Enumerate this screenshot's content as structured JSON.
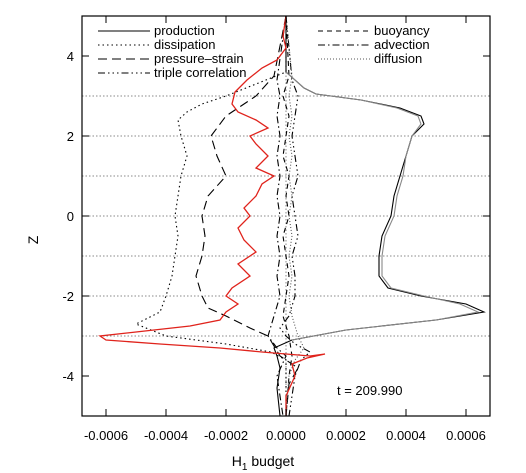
{
  "chart_data": {
    "type": "line",
    "xlabel": "H",
    "xlabel_sub": "1",
    "xlabel_rest": " budget",
    "ylabel": "Z",
    "xlim": [
      -0.00068,
      0.00068
    ],
    "ylim": [
      -5.0,
      5.0
    ],
    "x_ticks": [
      -0.0006,
      -0.0004,
      -0.0002,
      0.0,
      0.0002,
      0.0004,
      0.0006
    ],
    "x_tick_labels": [
      "-0.0006",
      "-0.0004",
      "-0.0002",
      "0.0000",
      "0.0002",
      "0.0004",
      "0.0006"
    ],
    "y_ticks": [
      -4,
      -2,
      0,
      2,
      4
    ],
    "y_tick_labels": [
      "-4",
      "-2",
      "0",
      "2",
      "4"
    ],
    "gridlines_y": [
      -3,
      -2,
      -1,
      0,
      1,
      2,
      3
    ],
    "annotation": "t = 209.990",
    "legend": [
      {
        "label": "production",
        "style": "solid",
        "color": "#000000"
      },
      {
        "label": "dissipation",
        "style": "dotted",
        "color": "#000000"
      },
      {
        "label": "pressure–strain",
        "style": "longdash",
        "color": "#000000"
      },
      {
        "label": "triple correlation",
        "style": "dashdotdotdot",
        "color": "#000000"
      },
      {
        "label": "buoyancy",
        "style": "dashed",
        "color": "#000000"
      },
      {
        "label": "advection",
        "style": "dashdot",
        "color": "#000000"
      },
      {
        "label": "diffusion",
        "style": "finedotted",
        "color": "#555555"
      }
    ],
    "series": [
      {
        "name": "production",
        "style": "solid",
        "color": "#000000",
        "points": [
          [
            0.0,
            5.0
          ],
          [
            0.0,
            3.6
          ],
          [
            3e-05,
            3.4
          ],
          [
            6e-05,
            3.2
          ],
          [
            0.0001,
            3.05
          ],
          [
            0.00025,
            2.9
          ],
          [
            0.00038,
            2.7
          ],
          [
            0.00045,
            2.5
          ],
          [
            0.00046,
            2.3
          ],
          [
            0.00042,
            2.0
          ],
          [
            0.0004,
            1.5
          ],
          [
            0.00038,
            1.0
          ],
          [
            0.00036,
            0.5
          ],
          [
            0.00035,
            0.0
          ],
          [
            0.00032,
            -0.5
          ],
          [
            0.00031,
            -1.0
          ],
          [
            0.00031,
            -1.5
          ],
          [
            0.00034,
            -1.8
          ],
          [
            0.00045,
            -2.0
          ],
          [
            0.0006,
            -2.2
          ],
          [
            0.00066,
            -2.4
          ],
          [
            0.0005,
            -2.6
          ],
          [
            0.0002,
            -2.85
          ],
          [
            2e-05,
            -3.1
          ],
          [
            -4e-05,
            -3.3
          ],
          [
            -3e-05,
            -3.5
          ],
          [
            -2e-05,
            -3.8
          ],
          [
            -3e-05,
            -4.3
          ],
          [
            -2e-05,
            -5.0
          ]
        ]
      },
      {
        "name": "dissipation",
        "style": "dotted",
        "color": "#000000",
        "points": [
          [
            0.0,
            5.0
          ],
          [
            0.0,
            3.6
          ],
          [
            -0.0001,
            3.3
          ],
          [
            -0.0002,
            3.0
          ],
          [
            -0.00028,
            2.8
          ],
          [
            -0.00033,
            2.6
          ],
          [
            -0.00036,
            2.4
          ],
          [
            -0.00035,
            2.0
          ],
          [
            -0.00033,
            1.5
          ],
          [
            -0.00035,
            1.0
          ],
          [
            -0.00036,
            0.5
          ],
          [
            -0.00037,
            0.0
          ],
          [
            -0.00036,
            -0.5
          ],
          [
            -0.00037,
            -1.0
          ],
          [
            -0.00038,
            -1.5
          ],
          [
            -0.0004,
            -2.0
          ],
          [
            -0.00042,
            -2.4
          ],
          [
            -0.0005,
            -2.7
          ],
          [
            -0.0004,
            -3.0
          ],
          [
            -0.0002,
            -3.2
          ],
          [
            -5e-05,
            -3.4
          ],
          [
            0.0,
            -3.6
          ],
          [
            0.0,
            -5.0
          ]
        ]
      },
      {
        "name": "pressure–strain",
        "style": "longdash",
        "color": "#000000",
        "points": [
          [
            0.0,
            5.0
          ],
          [
            -4e-05,
            3.5
          ],
          [
            -0.0001,
            3.0
          ],
          [
            -0.0002,
            2.5
          ],
          [
            -0.00025,
            2.0
          ],
          [
            -0.00023,
            1.5
          ],
          [
            -0.0002,
            1.0
          ],
          [
            -0.00026,
            0.5
          ],
          [
            -0.00028,
            0.0
          ],
          [
            -0.00027,
            -0.5
          ],
          [
            -0.00028,
            -1.0
          ],
          [
            -0.0003,
            -1.5
          ],
          [
            -0.00028,
            -2.0
          ],
          [
            -0.00026,
            -2.3
          ],
          [
            -0.0002,
            -2.5
          ],
          [
            -0.00012,
            -2.8
          ],
          [
            -6e-05,
            -3.0
          ],
          [
            -2e-05,
            -3.5
          ],
          [
            4e-05,
            -3.8
          ],
          [
            1e-05,
            -4.2
          ],
          [
            0.0,
            -5.0
          ]
        ]
      },
      {
        "name": "triple correlation",
        "style": "dashdotdotdot",
        "color": "#000000",
        "points": [
          [
            0.0,
            5.0
          ],
          [
            2e-05,
            3.4
          ],
          [
            4e-05,
            3.0
          ],
          [
            3e-05,
            2.5
          ],
          [
            2e-05,
            2.0
          ],
          [
            3e-05,
            1.5
          ],
          [
            4e-05,
            1.0
          ],
          [
            2e-05,
            0.5
          ],
          [
            3e-05,
            0.0
          ],
          [
            4e-05,
            -0.5
          ],
          [
            2e-05,
            -1.0
          ],
          [
            3e-05,
            -1.5
          ],
          [
            3e-05,
            -2.0
          ],
          [
            1e-05,
            -2.5
          ],
          [
            -2e-05,
            -2.8
          ],
          [
            0.0,
            -3.0
          ],
          [
            3e-05,
            -3.2
          ],
          [
            8e-05,
            -3.4
          ],
          [
            5e-05,
            -3.6
          ],
          [
            3e-05,
            -4.0
          ],
          [
            2e-05,
            -4.5
          ],
          [
            1e-05,
            -5.0
          ]
        ]
      },
      {
        "name": "buoyancy",
        "style": "dashed",
        "color": "#000000",
        "points": [
          [
            0.0,
            5.0
          ],
          [
            1e-05,
            3.5
          ],
          [
            -1e-05,
            3.0
          ],
          [
            1e-05,
            2.5
          ],
          [
            0.0,
            2.0
          ],
          [
            -1e-05,
            1.5
          ],
          [
            1e-05,
            1.0
          ],
          [
            0.0,
            0.5
          ],
          [
            1e-05,
            0.0
          ],
          [
            -1e-05,
            -0.5
          ],
          [
            0.0,
            -1.0
          ],
          [
            1e-05,
            -1.5
          ],
          [
            0.0,
            -2.0
          ],
          [
            -1e-05,
            -2.5
          ],
          [
            1e-05,
            -3.0
          ],
          [
            2e-05,
            -3.5
          ],
          [
            1e-05,
            -4.0
          ],
          [
            0.0,
            -5.0
          ]
        ]
      },
      {
        "name": "advection",
        "style": "dashdot",
        "color": "#000000",
        "points": [
          [
            0.0,
            5.0
          ],
          [
            -3e-05,
            3.4
          ],
          [
            -2e-05,
            3.0
          ],
          [
            -3e-05,
            2.5
          ],
          [
            -2e-05,
            2.0
          ],
          [
            -3e-05,
            1.5
          ],
          [
            -2e-05,
            1.0
          ],
          [
            -3e-05,
            0.5
          ],
          [
            -2e-05,
            0.0
          ],
          [
            -3e-05,
            -0.5
          ],
          [
            -2e-05,
            -1.0
          ],
          [
            -3e-05,
            -1.5
          ],
          [
            -2e-05,
            -2.0
          ],
          [
            -4e-05,
            -2.5
          ],
          [
            -6e-05,
            -3.0
          ],
          [
            -3e-05,
            -3.3
          ],
          [
            0.0,
            -3.5
          ],
          [
            -3e-05,
            -4.0
          ],
          [
            -1e-05,
            -5.0
          ]
        ]
      },
      {
        "name": "diffusion",
        "style": "finedotted",
        "color": "#555555",
        "points": [
          [
            0.0,
            5.0
          ],
          [
            2e-05,
            3.5
          ],
          [
            1e-05,
            3.0
          ],
          [
            2e-05,
            2.5
          ],
          [
            1e-05,
            2.0
          ],
          [
            2e-05,
            1.5
          ],
          [
            1e-05,
            1.0
          ],
          [
            2e-05,
            0.5
          ],
          [
            1e-05,
            0.0
          ],
          [
            2e-05,
            -0.5
          ],
          [
            1e-05,
            -1.0
          ],
          [
            2e-05,
            -1.5
          ],
          [
            1e-05,
            -2.0
          ],
          [
            2e-05,
            -2.5
          ],
          [
            4e-05,
            -3.0
          ],
          [
            6e-05,
            -3.3
          ],
          [
            3e-05,
            -3.6
          ],
          [
            1e-05,
            -4.0
          ],
          [
            0.0,
            -5.0
          ]
        ]
      },
      {
        "name": "",
        "style": "solid",
        "color": "#888888",
        "points": [
          [
            0.0,
            3.6
          ],
          [
            3e-05,
            3.4
          ],
          [
            6e-05,
            3.2
          ],
          [
            0.0001,
            3.05
          ],
          [
            0.00025,
            2.9
          ],
          [
            0.00037,
            2.7
          ],
          [
            0.00044,
            2.5
          ],
          [
            0.00045,
            2.3
          ],
          [
            0.00042,
            2.0
          ],
          [
            0.0004,
            1.5
          ],
          [
            0.00039,
            1.0
          ],
          [
            0.00037,
            0.5
          ],
          [
            0.00036,
            0.0
          ],
          [
            0.00033,
            -0.5
          ],
          [
            0.00032,
            -1.0
          ],
          [
            0.00032,
            -1.5
          ],
          [
            0.00035,
            -1.8
          ],
          [
            0.00046,
            -2.0
          ],
          [
            0.00058,
            -2.2
          ],
          [
            0.00064,
            -2.4
          ],
          [
            0.0005,
            -2.6
          ],
          [
            0.0002,
            -2.85
          ],
          [
            2e-05,
            -3.1
          ]
        ]
      },
      {
        "name": "",
        "style": "solid",
        "color": "#e0231c",
        "points": [
          [
            0.0,
            5.0
          ],
          [
            -1e-05,
            4.5
          ],
          [
            0.0,
            4.2
          ],
          [
            -3e-05,
            3.9
          ],
          [
            -8e-05,
            3.7
          ],
          [
            -0.00013,
            3.4
          ],
          [
            -0.00017,
            3.1
          ],
          [
            -0.00018,
            2.8
          ],
          [
            -0.00016,
            2.6
          ],
          [
            -0.0001,
            2.4
          ],
          [
            -6e-05,
            2.2
          ],
          [
            -0.00012,
            2.0
          ],
          [
            -0.0001,
            1.8
          ],
          [
            -6e-05,
            1.5
          ],
          [
            -0.0001,
            1.2
          ],
          [
            -4e-05,
            1.0
          ],
          [
            -8e-05,
            0.8
          ],
          [
            -0.0001,
            0.5
          ],
          [
            -0.00014,
            0.2
          ],
          [
            -0.00012,
            0.0
          ],
          [
            -0.00016,
            -0.3
          ],
          [
            -0.00014,
            -0.6
          ],
          [
            -0.0001,
            -0.9
          ],
          [
            -0.00016,
            -1.2
          ],
          [
            -0.00012,
            -1.5
          ],
          [
            -0.00018,
            -1.8
          ],
          [
            -0.0002,
            -2.0
          ],
          [
            -0.00016,
            -2.2
          ],
          [
            -0.0002,
            -2.4
          ],
          [
            -0.00022,
            -2.6
          ],
          [
            -0.00032,
            -2.75
          ],
          [
            -0.0005,
            -2.9
          ],
          [
            -0.00062,
            -3.0
          ],
          [
            -0.0006,
            -3.1
          ],
          [
            -0.00042,
            -3.2
          ],
          [
            -0.00022,
            -3.3
          ],
          [
            -8e-05,
            -3.4
          ],
          [
            0.0,
            -3.45
          ],
          [
            8e-05,
            -3.5
          ],
          [
            0.00013,
            -3.45
          ],
          [
            7e-05,
            -3.55
          ],
          [
            2e-05,
            -3.7
          ],
          [
            3e-05,
            -4.0
          ],
          [
            0.0,
            -4.5
          ],
          [
            0.0,
            -5.0
          ]
        ]
      }
    ]
  }
}
